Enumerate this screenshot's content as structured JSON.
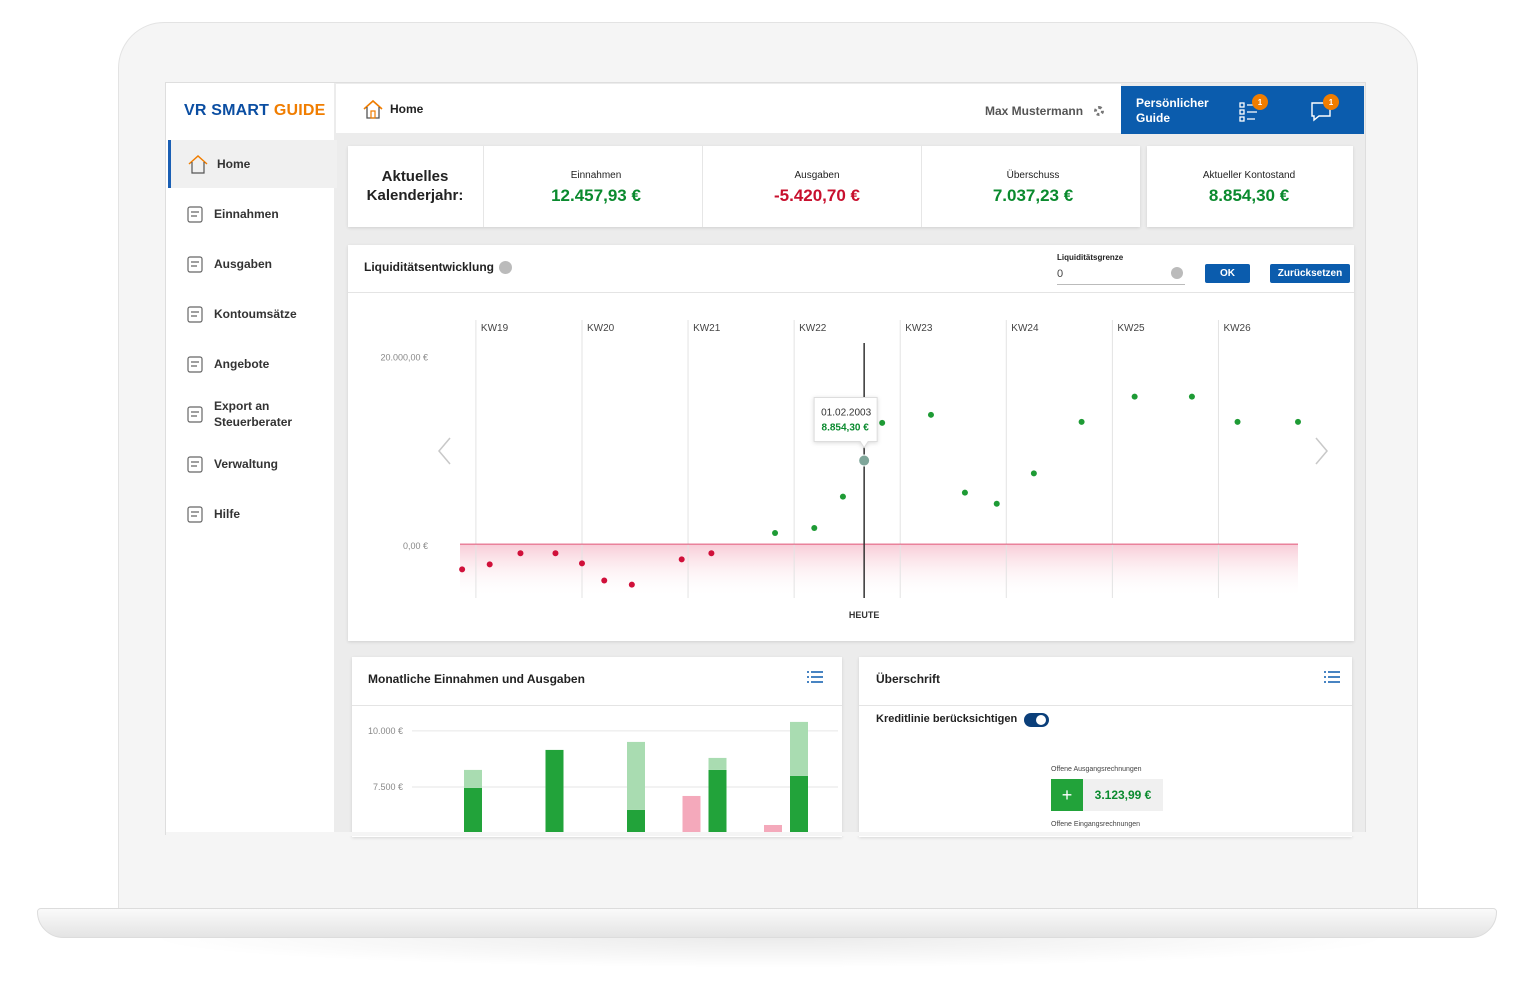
{
  "logo": {
    "part1": "VR SMART",
    "part2": "GUIDE"
  },
  "nav": [
    {
      "label": "Home",
      "active": true
    },
    {
      "label": "Einnahmen",
      "active": false
    },
    {
      "label": "Ausgaben",
      "active": false
    },
    {
      "label": "Kontoumsätze",
      "active": false
    },
    {
      "label": "Angebote",
      "active": false
    },
    {
      "label": "Export an Steuerberater",
      "active": false
    },
    {
      "label": "Verwaltung",
      "active": false
    },
    {
      "label": "Hilfe",
      "active": false
    }
  ],
  "topbar": {
    "page": "Home",
    "user": "Max Mustermann",
    "guide": "Persönlicher Guide",
    "badges": [
      "1",
      "1"
    ]
  },
  "kpi": {
    "heading": "Aktuelles Kalenderjahr:",
    "items": [
      {
        "label": "Einnahmen",
        "value": "12.457,93 €",
        "color": "#0a8a2e"
      },
      {
        "label": "Ausgaben",
        "value": "-5.420,70 €",
        "color": "#c8102e"
      },
      {
        "label": "Überschuss",
        "value": "7.037,23 €",
        "color": "#0a8a2e"
      },
      {
        "label": "Aktueller Kontostand",
        "value": "8.854,30 €",
        "color": "#0a8a2e"
      }
    ]
  },
  "liquidity": {
    "title": "Liquiditätsentwicklung",
    "limit_label": "Liquiditätsgrenze",
    "limit_value": "0",
    "ok": "OK",
    "reset": "Zurücksetzen",
    "chart": {
      "type": "line",
      "x": [
        18.87,
        19.13,
        19.42,
        19.75,
        20.0,
        20.21,
        20.47,
        20.94,
        21.22,
        21.82,
        22.19,
        22.46,
        22.66,
        22.83,
        23.29,
        23.61,
        23.91,
        24.26,
        24.71,
        25.21,
        25.75,
        26.18,
        26.75
      ],
      "values": [
        -2675,
        -2140,
        -963,
        -963,
        -2033,
        -3852,
        -4280,
        -1605,
        -963,
        1177,
        1712,
        5029,
        8854.3,
        12840,
        13696,
        5457,
        4280,
        7490,
        12947,
        15622,
        15622,
        12947,
        12947
      ],
      "xlim": [
        18.85,
        26.75
      ],
      "ylim": [
        -5700,
        21300
      ],
      "xticks": [
        {
          "value": 19,
          "label": "KW19"
        },
        {
          "value": 20,
          "label": "KW20"
        },
        {
          "value": 21,
          "label": "KW21"
        },
        {
          "value": 22,
          "label": "KW22"
        },
        {
          "value": 23,
          "label": "KW23"
        },
        {
          "value": 24,
          "label": "KW24"
        },
        {
          "value": 25,
          "label": "KW25"
        },
        {
          "value": 26,
          "label": "KW26"
        }
      ],
      "yticks": [
        {
          "value": 20000,
          "label": "20.000,00 €"
        },
        {
          "value": 0,
          "label": "0,00 €"
        }
      ],
      "today": {
        "x": 22.66,
        "label": "HEUTE"
      },
      "tooltip": {
        "date": "01.02.2003",
        "value_label": "8.854,30 €"
      },
      "colors": {
        "negative": "#d0103a",
        "positive": "#1e9b35",
        "forecast": "#86d18f"
      }
    }
  },
  "monthly": {
    "title": "Monatliche Einnahmen und Ausgaben",
    "chart": {
      "type": "bar",
      "categories": [
        null,
        null,
        null,
        null,
        null
      ],
      "series": [
        {
          "color": "#f4a9bb",
          "stack": "a",
          "values": [
            null,
            null,
            null,
            7098,
            5803
          ]
        },
        {
          "color": "#22a33a",
          "stack": "b",
          "values": [
            7455,
            9152,
            6473,
            8259,
            7991
          ]
        },
        {
          "color": "#a9dcb1",
          "stack": "b",
          "values": [
            805,
            null,
            3036,
            536,
            2411
          ]
        }
      ],
      "ylim": [
        5490,
        10710
      ],
      "yticks": [
        {
          "value": 10000,
          "label": "10.000 €"
        },
        {
          "value": 7500,
          "label": "7.500 €"
        }
      ]
    }
  },
  "overview": {
    "title": "Überschrift",
    "toggle": "Kreditlinie berücksichtigen",
    "out_label": "Offene Ausgangsrechnungen",
    "add": "+",
    "out_value": "3.123,99 €",
    "in_label": "Offene Eingangsrechnungen"
  }
}
